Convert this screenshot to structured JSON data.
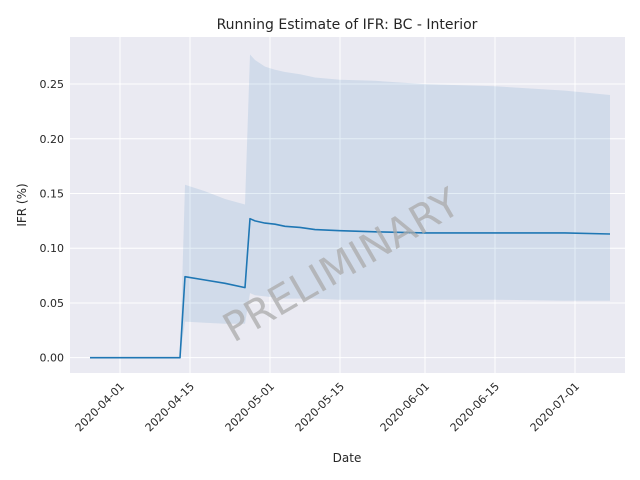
{
  "chart_data": {
    "type": "line",
    "title": "Running Estimate of IFR: BC - Interior",
    "xlabel": "Date",
    "ylabel": "IFR (%)",
    "watermark": "PRELIMINARY",
    "x_axis": "date",
    "xlim": [
      "2020-03-22",
      "2020-07-11"
    ],
    "ylim": [
      -0.014,
      0.293
    ],
    "x_ticks": [
      "2020-04-01",
      "2020-04-15",
      "2020-05-01",
      "2020-05-15",
      "2020-06-01",
      "2020-06-15",
      "2020-07-01"
    ],
    "y_ticks": [
      0.0,
      0.05,
      0.1,
      0.15,
      0.2,
      0.25
    ],
    "y_tick_labels": [
      "0.00",
      "0.05",
      "0.10",
      "0.15",
      "0.20",
      "0.25"
    ],
    "grid": true,
    "colors": {
      "line": "#1f77b4",
      "band": "#1f77b4",
      "background": "#eaeaf2",
      "grid": "#ffffff"
    },
    "series": [
      {
        "x": [
          "2020-03-26",
          "2020-04-13",
          "2020-04-14",
          "2020-04-18",
          "2020-04-22",
          "2020-04-26",
          "2020-04-27",
          "2020-04-28",
          "2020-04-30",
          "2020-05-02",
          "2020-05-04",
          "2020-05-07",
          "2020-05-10",
          "2020-05-15",
          "2020-05-22",
          "2020-06-01",
          "2020-06-15",
          "2020-06-29",
          "2020-07-08"
        ],
        "y": [
          0.0,
          0.0,
          0.074,
          0.071,
          0.068,
          0.064,
          0.127,
          0.125,
          0.123,
          0.122,
          0.12,
          0.119,
          0.117,
          0.116,
          0.115,
          0.114,
          0.114,
          0.114,
          0.113
        ],
        "lower": [
          0.0,
          0.0,
          0.033,
          0.032,
          0.031,
          0.031,
          0.059,
          0.057,
          0.056,
          0.055,
          0.054,
          0.054,
          0.054,
          0.053,
          0.053,
          0.053,
          0.053,
          0.052,
          0.052
        ],
        "upper": [
          0.0,
          0.0,
          0.158,
          0.152,
          0.145,
          0.14,
          0.277,
          0.272,
          0.266,
          0.263,
          0.261,
          0.259,
          0.256,
          0.254,
          0.253,
          0.25,
          0.248,
          0.244,
          0.24
        ]
      }
    ]
  }
}
